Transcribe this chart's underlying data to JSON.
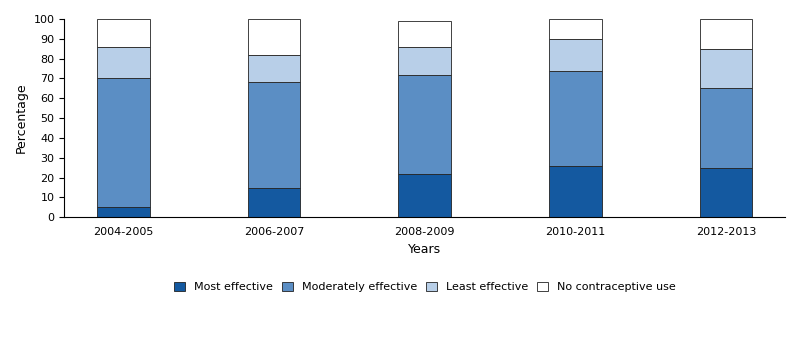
{
  "categories": [
    "2004-2005",
    "2006-2007",
    "2008-2009",
    "2010-2011",
    "2012-2013"
  ],
  "most_effective": [
    5,
    15,
    22,
    26,
    25
  ],
  "moderately_effective": [
    65,
    53,
    50,
    48,
    40
  ],
  "least_effective": [
    16,
    14,
    14,
    16,
    20
  ],
  "no_contraceptive": [
    14,
    18,
    13,
    10,
    15
  ],
  "colors": {
    "most_effective": "#1459a0",
    "moderately_effective": "#5b8ec4",
    "least_effective": "#b8cfe8",
    "no_contraceptive": "#ffffff"
  },
  "ylabel": "Percentage",
  "xlabel": "Years",
  "ylim": [
    0,
    100
  ],
  "yticks": [
    0,
    10,
    20,
    30,
    40,
    50,
    60,
    70,
    80,
    90,
    100
  ],
  "legend_labels": [
    "Most effective",
    "Moderately effective",
    "Least effective",
    "No contraceptive use"
  ],
  "bar_width": 0.35,
  "edgecolor": "#222222",
  "tick_fontsize": 8,
  "label_fontsize": 9,
  "legend_fontsize": 8
}
